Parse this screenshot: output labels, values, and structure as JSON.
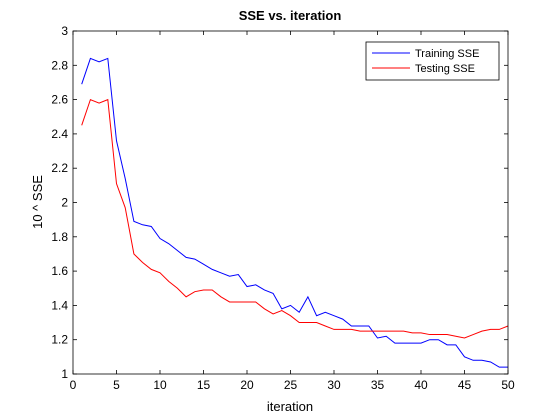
{
  "chart_data": {
    "type": "line",
    "title": "SSE vs. iteration",
    "xlabel": "iteration",
    "ylabel": "10 ^ SSE",
    "xlim": [
      0,
      50
    ],
    "ylim": [
      1,
      3
    ],
    "xticks": [
      0,
      5,
      10,
      15,
      20,
      25,
      30,
      35,
      40,
      45,
      50
    ],
    "yticks": [
      1,
      1.2,
      1.4,
      1.6,
      1.8,
      2,
      2.2,
      2.4,
      2.6,
      2.8,
      3
    ],
    "xtick_labels": [
      "0",
      "5",
      "10",
      "15",
      "20",
      "25",
      "30",
      "35",
      "40",
      "45",
      "50"
    ],
    "ytick_labels": [
      "1",
      "1.2",
      "1.4",
      "1.6",
      "1.8",
      "2",
      "2.2",
      "2.4",
      "2.6",
      "2.8",
      "3"
    ],
    "grid": false,
    "legend_position": "top-right",
    "x": [
      1,
      2,
      3,
      4,
      5,
      6,
      7,
      8,
      9,
      10,
      11,
      12,
      13,
      14,
      15,
      16,
      17,
      18,
      19,
      20,
      21,
      22,
      23,
      24,
      25,
      26,
      27,
      28,
      29,
      30,
      31,
      32,
      33,
      34,
      35,
      36,
      37,
      38,
      39,
      40,
      41,
      42,
      43,
      44,
      45,
      46,
      47,
      48,
      49,
      50
    ],
    "series": [
      {
        "name": "Training SSE",
        "color": "#0000ff",
        "values": [
          2.69,
          2.84,
          2.82,
          2.84,
          2.36,
          2.14,
          1.89,
          1.87,
          1.86,
          1.79,
          1.76,
          1.72,
          1.68,
          1.67,
          1.64,
          1.61,
          1.59,
          1.57,
          1.58,
          1.51,
          1.52,
          1.49,
          1.47,
          1.38,
          1.4,
          1.36,
          1.45,
          1.34,
          1.36,
          1.34,
          1.32,
          1.28,
          1.28,
          1.28,
          1.21,
          1.22,
          1.18,
          1.18,
          1.18,
          1.18,
          1.2,
          1.2,
          1.17,
          1.17,
          1.1,
          1.08,
          1.08,
          1.07,
          1.04,
          1.04
        ]
      },
      {
        "name": "Testing SSE",
        "color": "#ff0000",
        "values": [
          2.45,
          2.6,
          2.58,
          2.6,
          2.11,
          1.97,
          1.7,
          1.65,
          1.61,
          1.59,
          1.54,
          1.5,
          1.45,
          1.48,
          1.49,
          1.49,
          1.45,
          1.42,
          1.42,
          1.42,
          1.42,
          1.38,
          1.35,
          1.37,
          1.34,
          1.3,
          1.3,
          1.3,
          1.28,
          1.26,
          1.26,
          1.26,
          1.25,
          1.25,
          1.25,
          1.25,
          1.25,
          1.25,
          1.24,
          1.24,
          1.23,
          1.23,
          1.23,
          1.22,
          1.21,
          1.23,
          1.25,
          1.26,
          1.26,
          1.28
        ]
      }
    ]
  }
}
